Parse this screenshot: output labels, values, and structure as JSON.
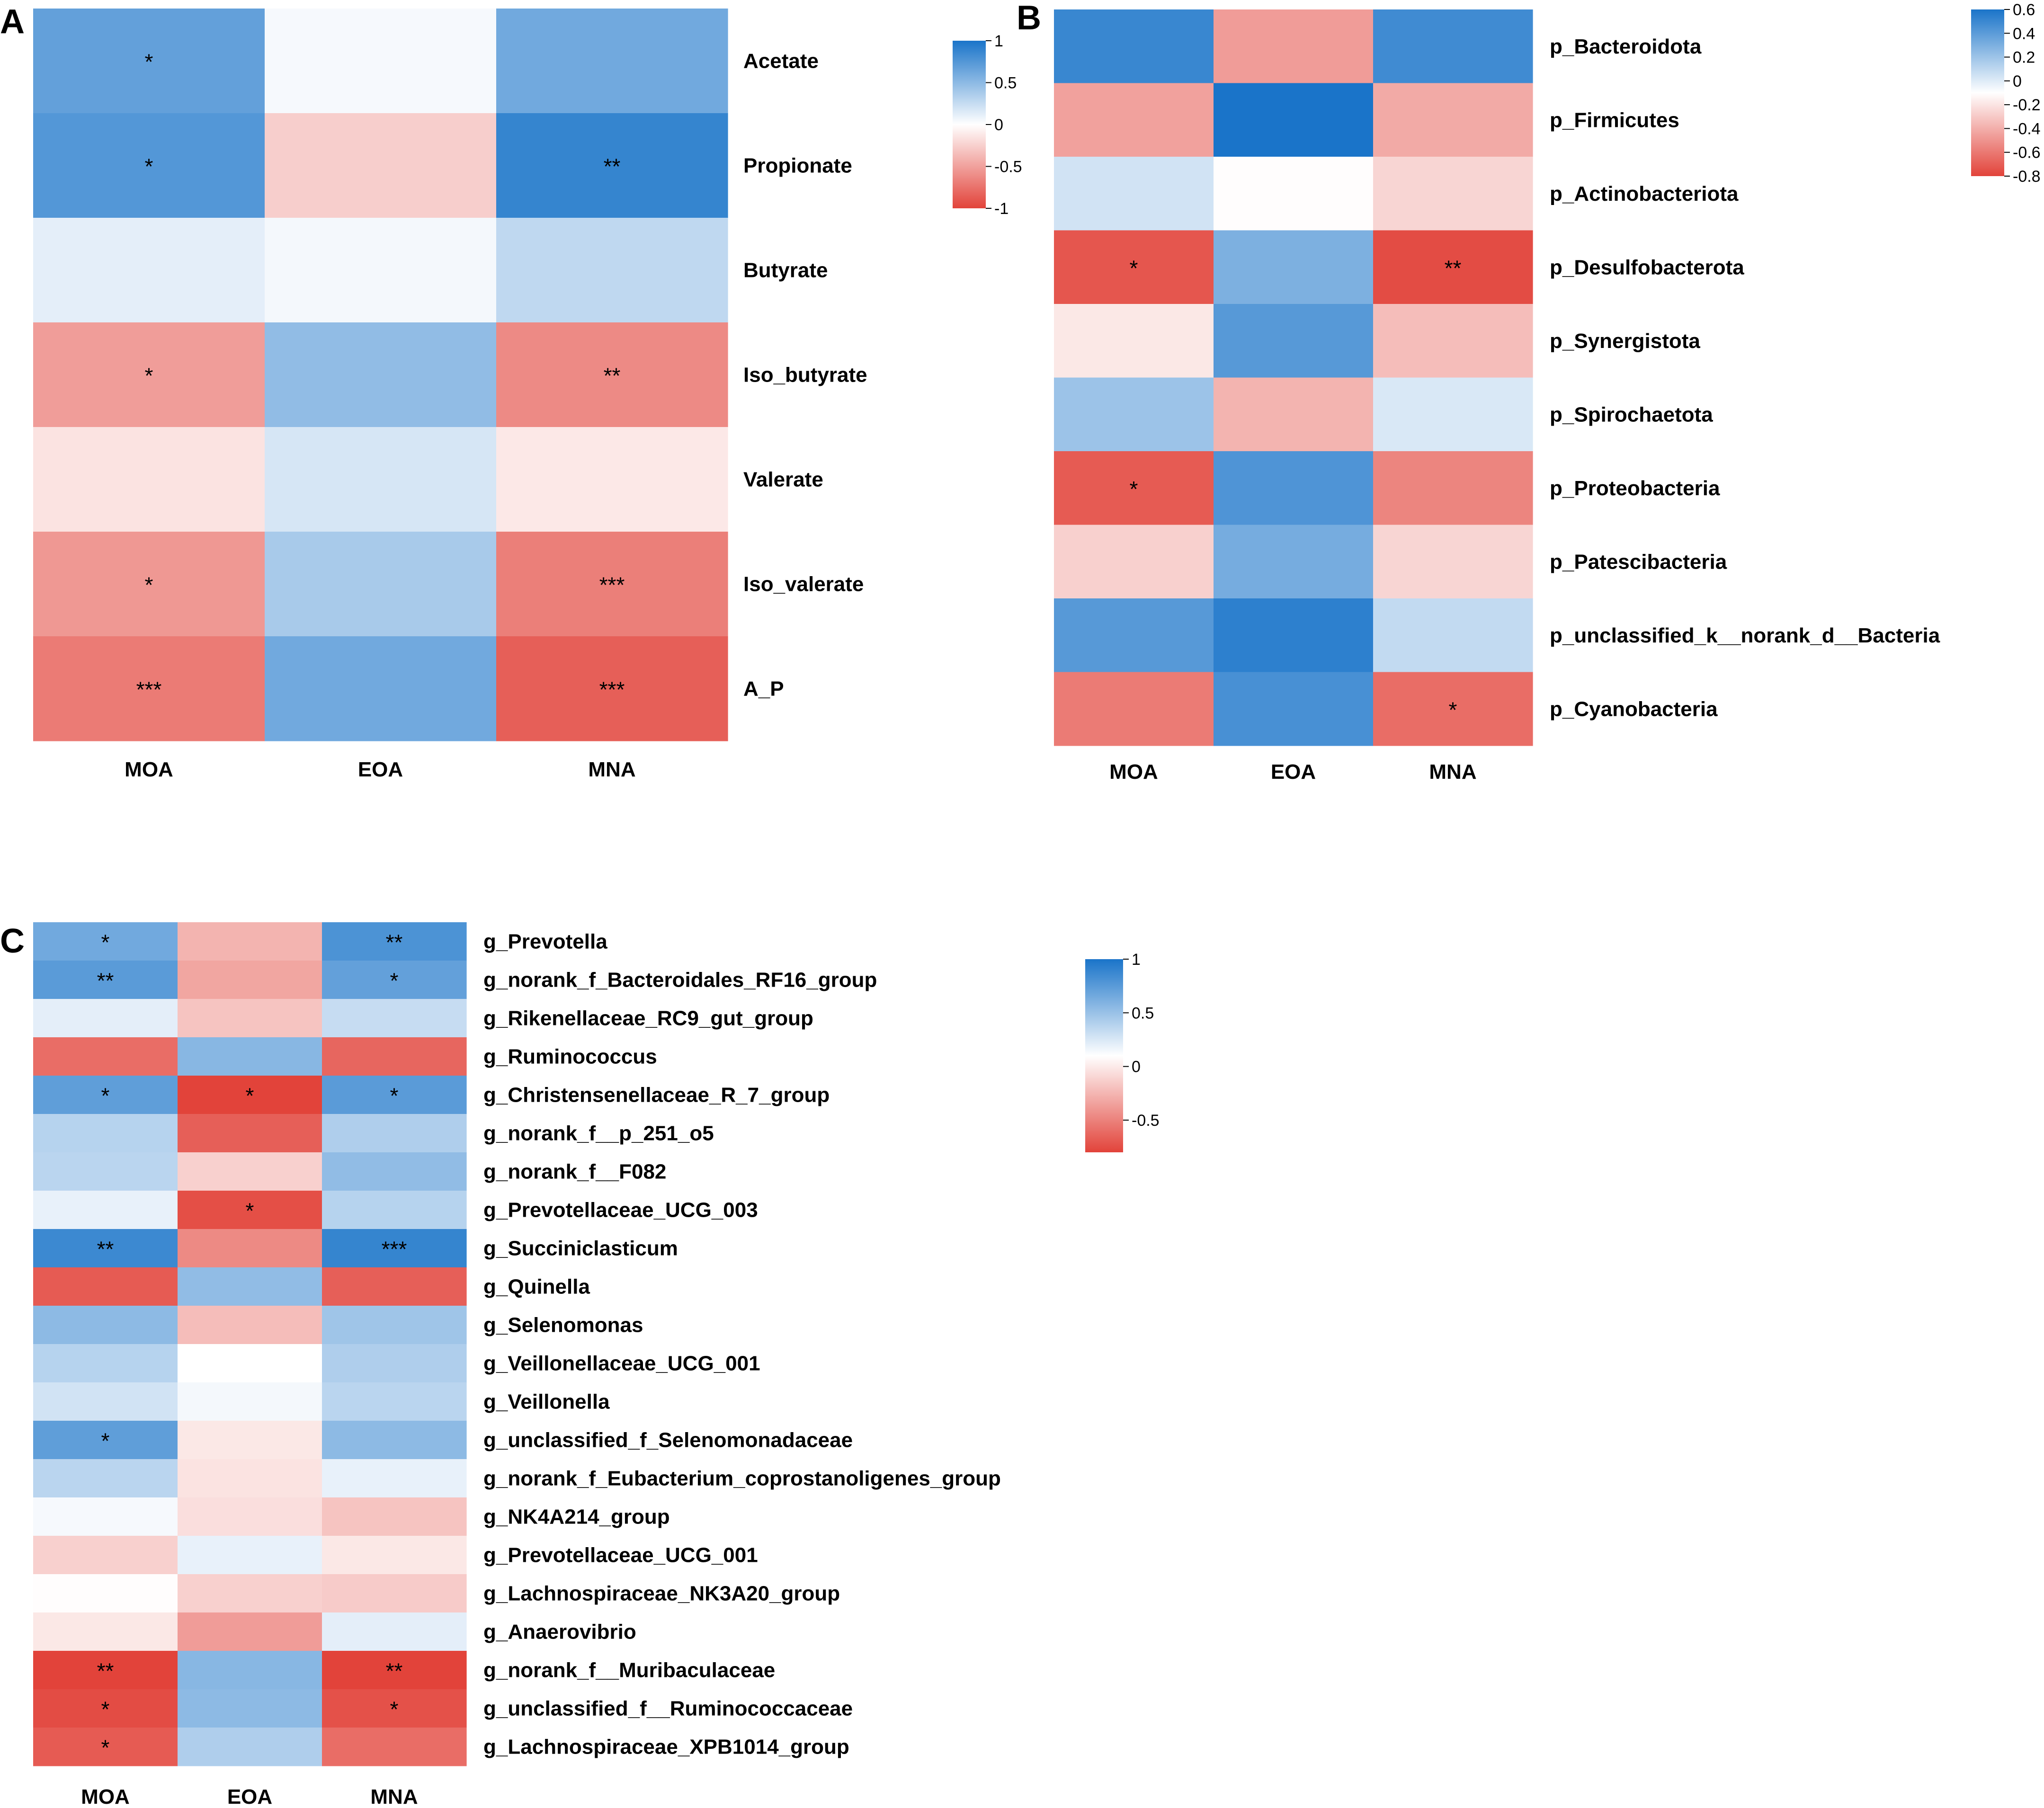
{
  "chart_data": [
    {
      "type": "heatmap",
      "panel": "A",
      "columns": [
        "MOA",
        "EOA",
        "MNA"
      ],
      "rows": [
        "Acetate",
        "Propionate",
        "Butyrate",
        "Iso_butyrate",
        "Valerate",
        "Iso_valerate",
        "A_P"
      ],
      "values": [
        [
          0.68,
          0.04,
          0.62
        ],
        [
          0.75,
          -0.26,
          0.88
        ],
        [
          0.12,
          0.05,
          0.28
        ],
        [
          -0.52,
          0.48,
          -0.62
        ],
        [
          -0.15,
          0.18,
          -0.12
        ],
        [
          -0.55,
          0.38,
          -0.68
        ],
        [
          -0.7,
          0.62,
          -0.85
        ]
      ],
      "significance": [
        [
          "*",
          "",
          ""
        ],
        [
          "*",
          "",
          "**"
        ],
        [
          "",
          "",
          ""
        ],
        [
          "*",
          "",
          "**"
        ],
        [
          "",
          "",
          ""
        ],
        [
          "*",
          "",
          "***"
        ],
        [
          "***",
          "",
          "***"
        ]
      ],
      "colorbar": {
        "min": -1,
        "max": 1,
        "ticks": [
          "1",
          "0.5",
          "0",
          "-0.5",
          "-1"
        ]
      }
    },
    {
      "type": "heatmap",
      "panel": "B",
      "columns": [
        "MOA",
        "EOA",
        "MNA"
      ],
      "rows": [
        "p_Bacteroidota",
        "p_Firmicutes",
        "p_Actinobacteriota",
        "p_Desulfobacterota",
        "p_Synergistota",
        "p_Spirochaetota",
        "p_Proteobacteria",
        "p_Patescibacteria",
        "p_unclassified_k__norank_d__Bacteria",
        "p_Cyanobacteria"
      ],
      "values": [
        [
          0.52,
          -0.42,
          0.5
        ],
        [
          -0.4,
          0.62,
          -0.36
        ],
        [
          0.12,
          -0.01,
          -0.18
        ],
        [
          -0.72,
          0.34,
          -0.76
        ],
        [
          -0.1,
          0.44,
          -0.28
        ],
        [
          0.26,
          -0.32,
          0.1
        ],
        [
          -0.7,
          0.46,
          -0.52
        ],
        [
          -0.2,
          0.36,
          -0.18
        ],
        [
          0.44,
          0.55,
          0.16
        ],
        [
          -0.56,
          0.48,
          -0.62
        ]
      ],
      "significance": [
        [
          "",
          "",
          ""
        ],
        [
          "",
          "",
          ""
        ],
        [
          "",
          "",
          ""
        ],
        [
          "*",
          "",
          "**"
        ],
        [
          "",
          "",
          ""
        ],
        [
          "",
          "",
          ""
        ],
        [
          "*",
          "",
          ""
        ],
        [
          "",
          "",
          ""
        ],
        [
          "",
          "",
          ""
        ],
        [
          "",
          "",
          "*"
        ]
      ],
      "colorbar": {
        "min": -0.8,
        "max": 0.6,
        "ticks": [
          "0.6",
          "0.4",
          "0.2",
          "0",
          "-0.2",
          "-0.4",
          "-0.6",
          "-0.8"
        ]
      }
    },
    {
      "type": "heatmap",
      "panel": "C",
      "columns": [
        "MOA",
        "EOA",
        "MNA"
      ],
      "rows": [
        "g_Prevotella",
        "g_norank_f_Bacteroidales_RF16_group",
        "g_Rikenellaceae_RC9_gut_group",
        "g_Ruminococcus",
        "g_Christensenellaceae_R_7_group",
        "g_norank_f__p_251_o5",
        "g_norank_f__F082",
        "g_Prevotellaceae_UCG_003",
        "g_Succiniclasticum",
        "g_Quinella",
        "g_Selenomonas",
        "g_Veillonellaceae_UCG_001",
        "g_Veillonella",
        "g_unclassified_f_Selenomonadaceae",
        "g_norank_f_Eubacterium_coprostanoligenes_group",
        "g_NK4A214_group",
        "g_Prevotellaceae_UCG_001",
        "g_Lachnospiraceae_NK3A20_group",
        "g_Anaerovibrio",
        "g_norank_f__Muribaculaceae",
        "g_unclassified_f__Ruminococcaceae",
        "g_Lachnospiraceae_XPB1014_group"
      ],
      "values": [
        [
          0.62,
          -0.32,
          0.78
        ],
        [
          0.72,
          -0.38,
          0.68
        ],
        [
          0.12,
          -0.25,
          0.25
        ],
        [
          -0.62,
          0.52,
          -0.65
        ],
        [
          0.7,
          -0.82,
          0.72
        ],
        [
          0.32,
          -0.68,
          0.35
        ],
        [
          0.3,
          -0.2,
          0.48
        ],
        [
          0.1,
          -0.75,
          0.32
        ],
        [
          0.85,
          -0.5,
          0.88
        ],
        [
          -0.7,
          0.48,
          -0.68
        ],
        [
          0.5,
          -0.28,
          0.42
        ],
        [
          0.32,
          0.0,
          0.35
        ],
        [
          0.2,
          0.05,
          0.3
        ],
        [
          0.7,
          -0.1,
          0.5
        ],
        [
          0.3,
          -0.12,
          0.1
        ],
        [
          0.04,
          -0.14,
          -0.25
        ],
        [
          -0.2,
          0.1,
          -0.1
        ],
        [
          -0.01,
          -0.2,
          -0.22
        ],
        [
          -0.1,
          -0.42,
          0.12
        ],
        [
          -0.8,
          0.52,
          -0.82
        ],
        [
          -0.76,
          0.5,
          -0.74
        ],
        [
          -0.7,
          0.35,
          -0.62
        ]
      ],
      "significance": [
        [
          "*",
          "",
          "**"
        ],
        [
          "**",
          "",
          "*"
        ],
        [
          "",
          "",
          ""
        ],
        [
          "",
          "",
          ""
        ],
        [
          "*",
          "*",
          "*"
        ],
        [
          "",
          "",
          ""
        ],
        [
          "",
          "",
          ""
        ],
        [
          "",
          "*",
          ""
        ],
        [
          "**",
          "",
          "***"
        ],
        [
          "",
          "",
          ""
        ],
        [
          "",
          "",
          ""
        ],
        [
          "",
          "",
          ""
        ],
        [
          "",
          "",
          ""
        ],
        [
          "*",
          "",
          ""
        ],
        [
          "",
          "",
          ""
        ],
        [
          "",
          "",
          ""
        ],
        [
          "",
          "",
          ""
        ],
        [
          "",
          "",
          ""
        ],
        [
          "",
          "",
          ""
        ],
        [
          "**",
          "",
          "**"
        ],
        [
          "*",
          "",
          "*"
        ],
        [
          "*",
          "",
          ""
        ]
      ],
      "colorbar": {
        "min": -0.8,
        "max": 1,
        "ticks": [
          "1",
          "0.5",
          "0",
          "-0.5"
        ]
      }
    }
  ]
}
